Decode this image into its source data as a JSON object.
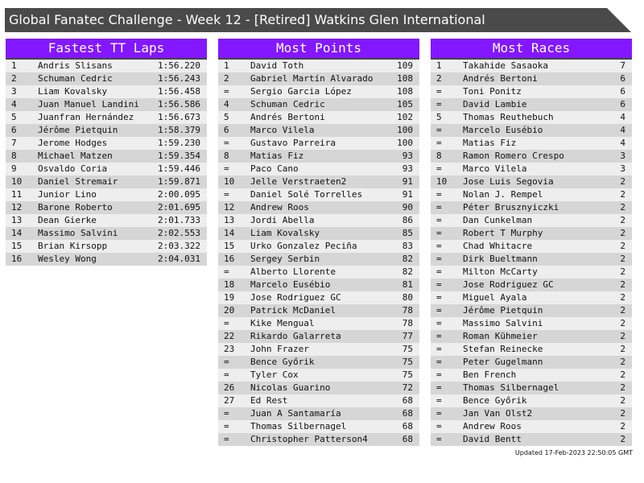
{
  "title": "Global Fanatec Challenge - Week 12 - [Retired] Watkins Glen International",
  "panels": [
    {
      "heading": "Fastest TT Laps",
      "rows": [
        [
          "1",
          "Andris Slisans",
          "1:56.220"
        ],
        [
          "2",
          "Schuman Cedric",
          "1:56.243"
        ],
        [
          "3",
          "Liam Kovalsky",
          "1:56.458"
        ],
        [
          "4",
          "Juan Manuel Landini",
          "1:56.586"
        ],
        [
          "5",
          "Juanfran Hernández",
          "1:56.673"
        ],
        [
          "6",
          "Jérôme Pietquin",
          "1:58.379"
        ],
        [
          "7",
          "Jerome Hodges",
          "1:59.230"
        ],
        [
          "8",
          "Michael Matzen",
          "1:59.354"
        ],
        [
          "9",
          "Osvaldo Coria",
          "1:59.446"
        ],
        [
          "10",
          "Daniel Stremair",
          "1:59.871"
        ],
        [
          "11",
          "Junior Lino",
          "2:00.095"
        ],
        [
          "12",
          "Barone Roberto",
          "2:01.695"
        ],
        [
          "13",
          "Dean Gierke",
          "2:01.733"
        ],
        [
          "14",
          "Massimo Salvini",
          "2:02.553"
        ],
        [
          "15",
          "Brian Kirsopp",
          "2:03.322"
        ],
        [
          "16",
          "Wesley Wong",
          "2:04.031"
        ]
      ]
    },
    {
      "heading": "Most Points",
      "rows": [
        [
          "1",
          "David Toth",
          "109"
        ],
        [
          "2",
          "Gabriel Martín Alvarado",
          "108"
        ],
        [
          "=",
          "Sergio Garcia López",
          "108"
        ],
        [
          "4",
          "Schuman Cedric",
          "105"
        ],
        [
          "5",
          "Andrés Bertoni",
          "102"
        ],
        [
          "6",
          "Marco Vilela",
          "100"
        ],
        [
          "=",
          "Gustavo Parreira",
          "100"
        ],
        [
          "8",
          "Matias Fiz",
          "93"
        ],
        [
          "=",
          "Paco Cano",
          "93"
        ],
        [
          "10",
          "Jelle Verstraeten2",
          "91"
        ],
        [
          "=",
          "Daniel Solé Torrelles",
          "91"
        ],
        [
          "12",
          "Andrew Roos",
          "90"
        ],
        [
          "13",
          "Jordi Abella",
          "86"
        ],
        [
          "14",
          "Liam Kovalsky",
          "85"
        ],
        [
          "15",
          "Urko Gonzalez Peciña",
          "83"
        ],
        [
          "16",
          "Sergey Serbin",
          "82"
        ],
        [
          "=",
          "Alberto Llorente",
          "82"
        ],
        [
          "18",
          "Marcelo Eusébio",
          "81"
        ],
        [
          "19",
          "Jose Rodriguez GC",
          "80"
        ],
        [
          "20",
          "Patrick McDaniel",
          "78"
        ],
        [
          "=",
          "Kike Mengual",
          "78"
        ],
        [
          "22",
          "Rikardo Galarreta",
          "77"
        ],
        [
          "23",
          "John Frazer",
          "75"
        ],
        [
          "=",
          "Bence Győrik",
          "75"
        ],
        [
          "=",
          "Tyler Cox",
          "75"
        ],
        [
          "26",
          "Nicolas Guarino",
          "72"
        ],
        [
          "27",
          "Ed Rest",
          "68"
        ],
        [
          "=",
          "Juan A Santamaría",
          "68"
        ],
        [
          "=",
          "Thomas Silbernagel",
          "68"
        ],
        [
          "=",
          "Christopher Patterson4",
          "68"
        ]
      ]
    },
    {
      "heading": "Most Races",
      "rows": [
        [
          "1",
          "Takahide Sasaoka",
          "7"
        ],
        [
          "2",
          "Andrés Bertoni",
          "6"
        ],
        [
          "=",
          "Toni Ponitz",
          "6"
        ],
        [
          "=",
          "David Lambie",
          "6"
        ],
        [
          "5",
          "Thomas Reuthebuch",
          "4"
        ],
        [
          "=",
          "Marcelo Eusébio",
          "4"
        ],
        [
          "=",
          "Matias Fiz",
          "4"
        ],
        [
          "8",
          "Ramon Romero Crespo",
          "3"
        ],
        [
          "=",
          "Marco Vilela",
          "3"
        ],
        [
          "10",
          "Jose Luis Segovia",
          "2"
        ],
        [
          "=",
          "Nolan J. Rempel",
          "2"
        ],
        [
          "=",
          "Péter Brusznyiczki",
          "2"
        ],
        [
          "=",
          "Dan Cunkelman",
          "2"
        ],
        [
          "=",
          "Robert T Murphy",
          "2"
        ],
        [
          "=",
          "Chad Whitacre",
          "2"
        ],
        [
          "=",
          "Dirk Bueltmann",
          "2"
        ],
        [
          "=",
          "Milton McCarty",
          "2"
        ],
        [
          "=",
          "Jose Rodriguez GC",
          "2"
        ],
        [
          "=",
          "Miguel Ayala",
          "2"
        ],
        [
          "=",
          "Jérôme Pietquin",
          "2"
        ],
        [
          "=",
          "Massimo Salvini",
          "2"
        ],
        [
          "=",
          "Roman Kühmeier",
          "2"
        ],
        [
          "=",
          "Stefan Reinecke",
          "2"
        ],
        [
          "=",
          "Peter Gugelmann",
          "2"
        ],
        [
          "=",
          "Ben French",
          "2"
        ],
        [
          "=",
          "Thomas Silbernagel",
          "2"
        ],
        [
          "=",
          "Bence Győrik",
          "2"
        ],
        [
          "=",
          "Jan Van Olst2",
          "2"
        ],
        [
          "=",
          "Andrew Roos",
          "2"
        ],
        [
          "=",
          "David Bentt",
          "2"
        ]
      ]
    }
  ],
  "footer": "Updated 17-Feb-2023 22:50:05 GMT",
  "colors": {
    "header": "#8317ff",
    "titlebar": "#4a4a4a",
    "row_light": "#eeeeee",
    "row_dark": "#d6d6d6"
  }
}
